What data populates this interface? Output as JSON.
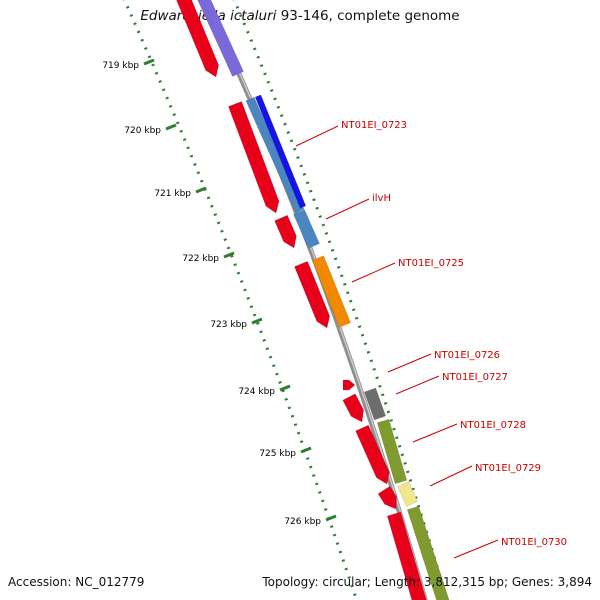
{
  "title": {
    "organism": "Edwardsiella ictaluri",
    "suffix": " 93-146, complete genome"
  },
  "footer": {
    "accession": "Accession: NC_012779",
    "summary": "Topology: circular; Length: 3,812,315 bp; Genes: 3,894"
  },
  "colors": {
    "cds": "#e8001a",
    "backbone": "#8f8f8f",
    "tick": "#2e7d32",
    "label": "#cc0000",
    "bands": {
      "purple": "#7b68d9",
      "blue": "#1414e6",
      "steelblue": "#4b86c1",
      "orange": "#f28a00",
      "gray": "#6d6d6d",
      "olive": "#7f9a2e",
      "khaki": "#f0e68c"
    }
  },
  "ruler": [
    {
      "kbp": 719,
      "label": "719 kbp"
    },
    {
      "kbp": 720,
      "label": "720 kbp"
    },
    {
      "kbp": 721,
      "label": "721 kbp"
    },
    {
      "kbp": 722,
      "label": "722 kbp"
    },
    {
      "kbp": 723,
      "label": "723 kbp"
    },
    {
      "kbp": 724,
      "label": "724 kbp"
    },
    {
      "kbp": 725,
      "label": "725 kbp"
    },
    {
      "kbp": 726,
      "label": "726 kbp"
    }
  ],
  "features": [
    {
      "id": "pre-a",
      "label": ""
    },
    {
      "id": "g0723",
      "label": "NT01EI_0723"
    },
    {
      "id": "ilvH",
      "label": "ilvH"
    },
    {
      "id": "g0725",
      "label": "NT01EI_0725"
    },
    {
      "id": "g0726",
      "label": "NT01EI_0726"
    },
    {
      "id": "g0727",
      "label": "NT01EI_0727"
    },
    {
      "id": "g0728",
      "label": "NT01EI_0728"
    },
    {
      "id": "g0729",
      "label": "NT01EI_0729"
    },
    {
      "id": "g0730",
      "label": "NT01EI_0730"
    }
  ]
}
